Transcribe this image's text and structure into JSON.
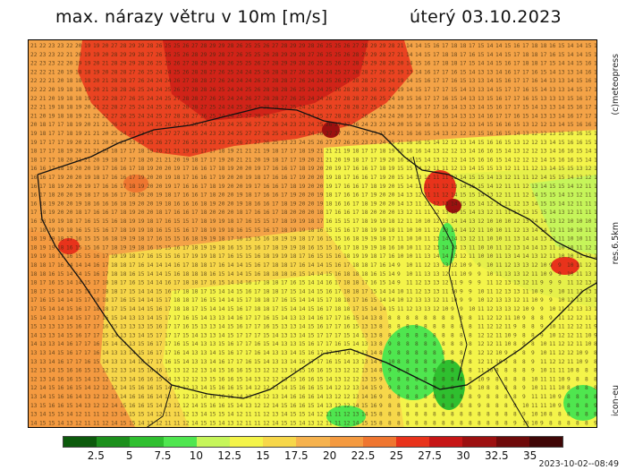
{
  "header": {
    "title": "max. nárazy větru v 10m [m/s]",
    "date": "úterý 03.10.2023"
  },
  "side_labels": {
    "brand": "(c)meteopress",
    "resolution": "res.6.5km",
    "model": "icon-eu"
  },
  "timestamp": "2023-10-02--08:49",
  "legend": {
    "colors": [
      "#0c5a0c",
      "#1c8f1c",
      "#2fbf2f",
      "#4fe64f",
      "#c6f55a",
      "#f4f44a",
      "#f7d74a",
      "#f6b24e",
      "#f49a40",
      "#ef7630",
      "#e8331b",
      "#c61616",
      "#9c1010",
      "#6e0a0a",
      "#3f0606"
    ],
    "labels": [
      "2.5",
      "5",
      "7.5",
      "10",
      "12.5",
      "15",
      "17.5",
      "20",
      "22.5",
      "25",
      "27.5",
      "30",
      "32.5",
      "35"
    ]
  },
  "map": {
    "background_color": "#f4a347",
    "border_color": "#222222",
    "unit": "m/s"
  }
}
